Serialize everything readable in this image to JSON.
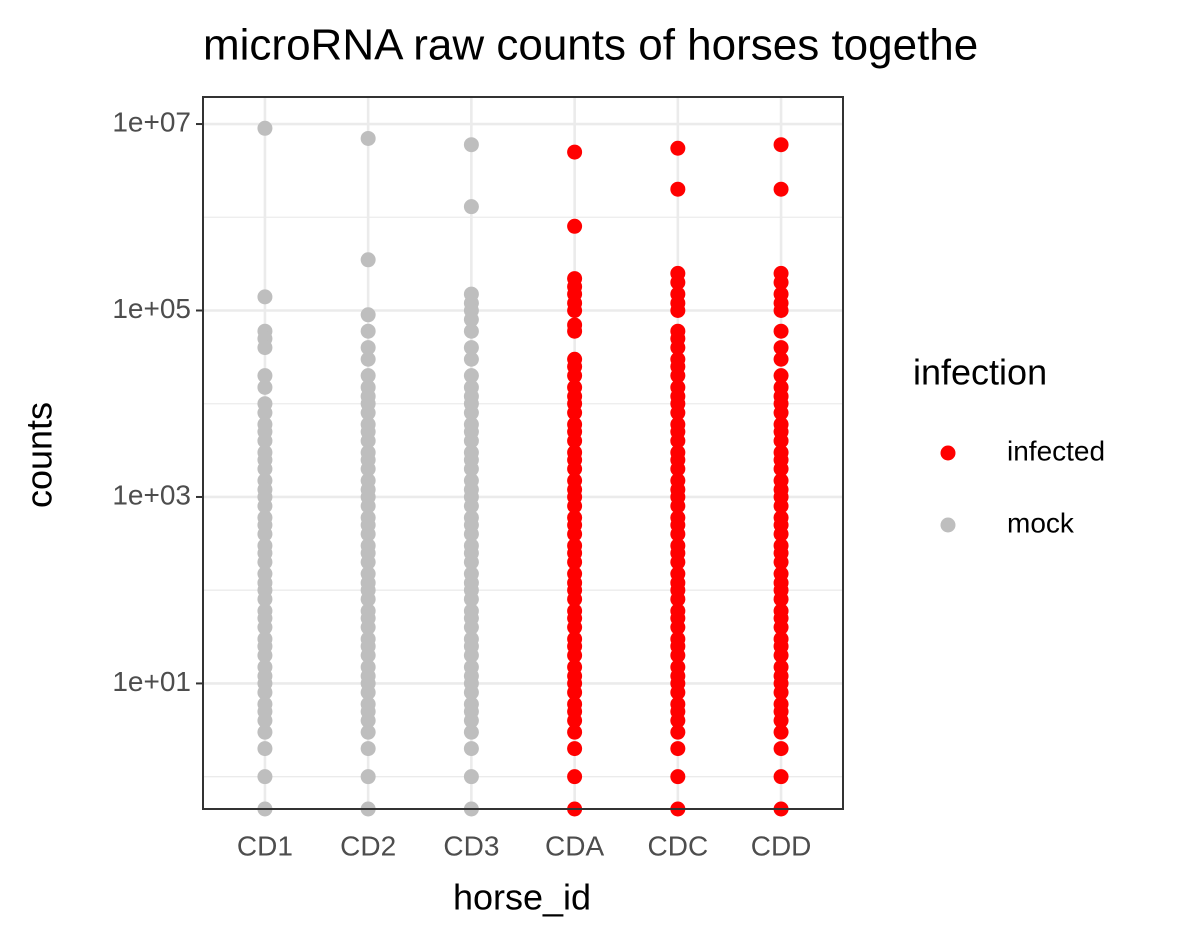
{
  "chart_data": {
    "type": "strip",
    "title": "microRNA raw counts of horses togethe",
    "x_label": "horse_id",
    "y_label": "counts",
    "legend_title": "infection",
    "log_scale_y": true,
    "grid": true,
    "categories": [
      "CD1",
      "CD2",
      "CD3",
      "CDA",
      "CDC",
      "CDD"
    ],
    "ylim": [
      0.45,
      19500000
    ],
    "yticks": [
      {
        "value": 10,
        "label": "1e+01"
      },
      {
        "value": 1000,
        "label": "1e+03"
      },
      {
        "value": 100000,
        "label": "1e+05"
      },
      {
        "value": 10000000,
        "label": "1e+07"
      }
    ],
    "minor_yticks": [
      1,
      100,
      10000,
      1000000
    ],
    "series": [
      {
        "name": "infected",
        "color": "#ff0000",
        "values": [
          null,
          null,
          null,
          [
            5000000,
            800000,
            220000,
            180000,
            150000,
            120000,
            100000,
            70000,
            60000,
            30000,
            25000,
            20000,
            15000,
            12000,
            10000,
            8000,
            6000,
            5000,
            4000,
            3000,
            2500,
            2000,
            1500,
            1200,
            1000,
            800,
            600,
            500,
            400,
            300,
            250,
            200,
            150,
            120,
            100,
            80,
            60,
            50,
            40,
            30,
            25,
            20,
            15,
            12,
            10,
            8,
            6,
            5,
            4,
            3,
            2,
            1,
            0
          ],
          [
            5500000,
            2000000,
            250000,
            200000,
            150000,
            120000,
            100000,
            60000,
            50000,
            40000,
            30000,
            25000,
            20000,
            15000,
            12000,
            10000,
            8000,
            6000,
            5000,
            4000,
            3000,
            2500,
            2000,
            1500,
            1200,
            1000,
            800,
            600,
            500,
            400,
            300,
            250,
            200,
            150,
            120,
            100,
            80,
            60,
            50,
            40,
            30,
            25,
            20,
            15,
            12,
            10,
            8,
            6,
            5,
            4,
            3,
            2,
            1,
            0
          ],
          [
            6000000,
            2000000,
            250000,
            200000,
            150000,
            120000,
            100000,
            60000,
            40000,
            30000,
            20000,
            15000,
            12000,
            10000,
            8000,
            6000,
            5000,
            4000,
            3000,
            2500,
            2000,
            1500,
            1200,
            1000,
            800,
            600,
            500,
            400,
            300,
            250,
            200,
            150,
            120,
            100,
            80,
            60,
            50,
            40,
            30,
            25,
            20,
            15,
            12,
            10,
            8,
            6,
            5,
            4,
            3,
            2,
            1,
            0
          ]
        ]
      },
      {
        "name": "mock",
        "color": "#bebebe",
        "values": [
          [
            9000000,
            140000,
            60000,
            50000,
            40000,
            20000,
            15000,
            10000,
            8000,
            6000,
            5000,
            4000,
            3000,
            2500,
            2000,
            1500,
            1200,
            1000,
            800,
            600,
            500,
            400,
            300,
            250,
            200,
            150,
            120,
            100,
            80,
            60,
            50,
            40,
            30,
            25,
            20,
            15,
            12,
            10,
            8,
            6,
            5,
            4,
            3,
            2,
            1,
            0
          ],
          [
            7000000,
            350000,
            90000,
            60000,
            40000,
            30000,
            20000,
            15000,
            12000,
            10000,
            8000,
            6000,
            5000,
            4000,
            3000,
            2500,
            2000,
            1500,
            1200,
            1000,
            800,
            600,
            500,
            400,
            300,
            250,
            200,
            150,
            120,
            100,
            80,
            60,
            50,
            40,
            30,
            25,
            20,
            15,
            12,
            10,
            8,
            6,
            5,
            4,
            3,
            2,
            1,
            0
          ],
          [
            6000000,
            1300000,
            150000,
            120000,
            100000,
            80000,
            60000,
            40000,
            30000,
            20000,
            15000,
            12000,
            10000,
            8000,
            6000,
            5000,
            4000,
            3000,
            2500,
            2000,
            1500,
            1200,
            1000,
            800,
            600,
            500,
            400,
            300,
            250,
            200,
            150,
            120,
            100,
            80,
            60,
            50,
            40,
            30,
            25,
            20,
            15,
            12,
            10,
            8,
            6,
            5,
            4,
            3,
            2,
            1,
            0
          ],
          null,
          null,
          null
        ]
      }
    ]
  }
}
